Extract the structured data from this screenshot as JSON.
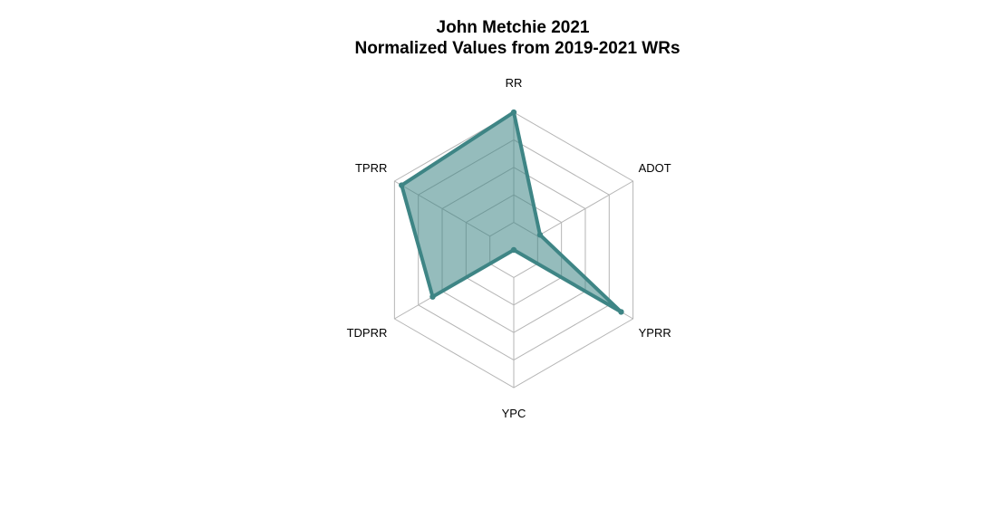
{
  "chart_data": {
    "type": "radar",
    "title": "John Metchie 2021",
    "subtitle": "Normalized Values from 2019-2021 WRs",
    "axes": [
      "RR",
      "ADOT",
      "YPRR",
      "YPC",
      "TDPRR",
      "TPRR"
    ],
    "series": [
      {
        "values": [
          1.0,
          0.22,
          0.9,
          0.0,
          0.68,
          0.94
        ]
      }
    ],
    "range": [
      0,
      1
    ],
    "grid_levels": 5,
    "colors": {
      "line": "#3e8585",
      "fill": "#3e8585",
      "fill_opacity": 0.55,
      "grid": "#b5b5b5"
    }
  }
}
